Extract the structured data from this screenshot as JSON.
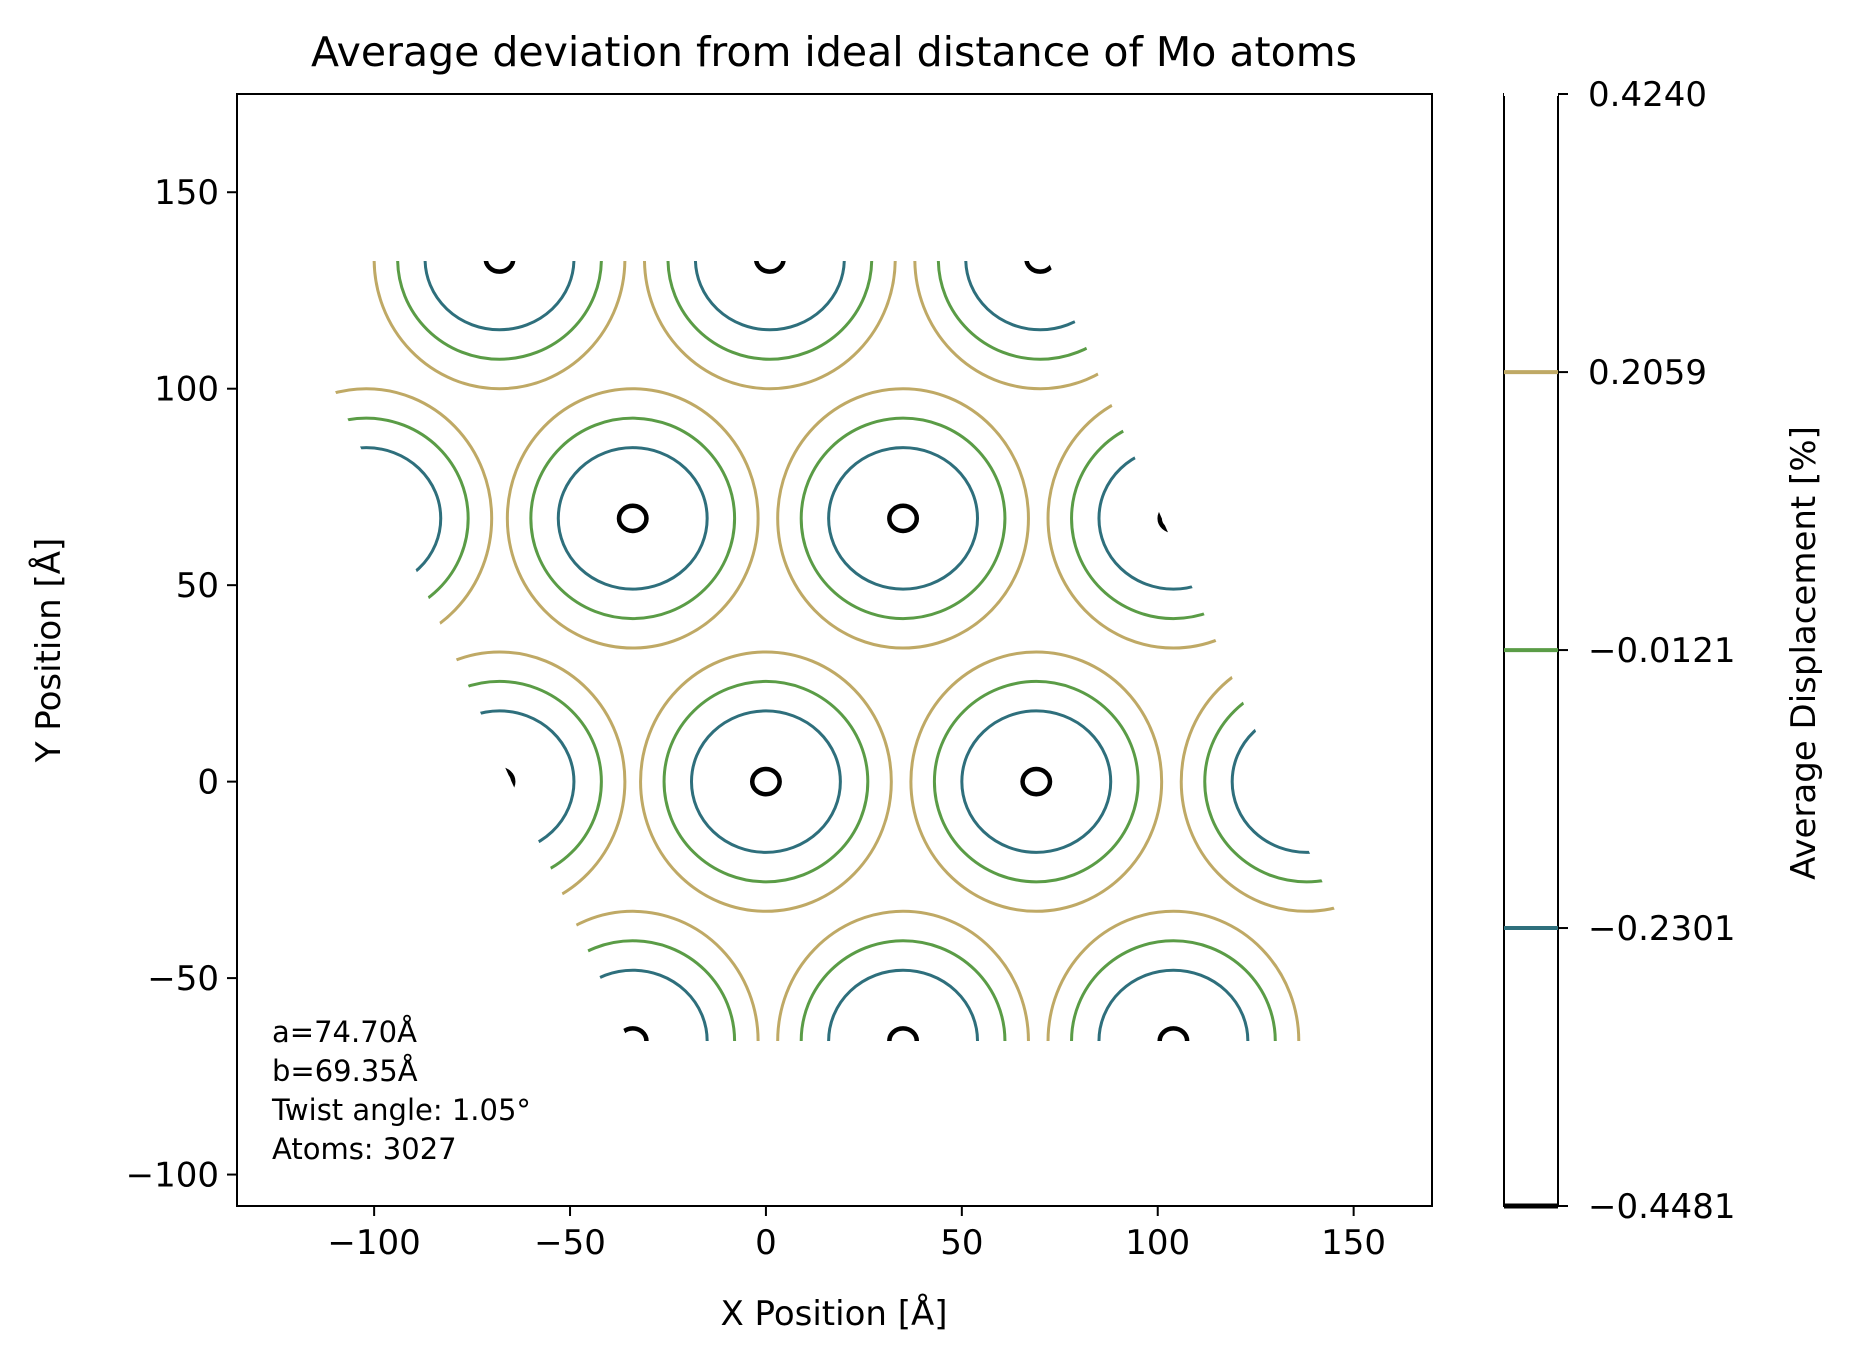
{
  "chart_data": {
    "type": "contour",
    "title": "Average deviation from ideal distance of Mo atoms",
    "xlabel": "X Position [Å]",
    "ylabel": "Y Position [Å]",
    "xlim": [
      -135,
      170
    ],
    "ylim": [
      -108,
      175
    ],
    "xticks": [
      -100,
      -50,
      0,
      50,
      100,
      150
    ],
    "xtick_labels": [
      "−100",
      "−50",
      "0",
      "50",
      "100",
      "150"
    ],
    "yticks": [
      -100,
      -50,
      0,
      50,
      100,
      150
    ],
    "ytick_labels": [
      "−100",
      "−50",
      "0",
      "50",
      "100",
      "150"
    ],
    "colorbar": {
      "label": "Average Displacement [%]",
      "range": [
        -0.4481,
        0.424
      ],
      "levels": [
        {
          "value": -0.4481,
          "label": "−0.4481",
          "color": "#000000"
        },
        {
          "value": -0.2301,
          "label": "−0.2301",
          "color": "#2e6f7c"
        },
        {
          "value": -0.0121,
          "label": "−0.0121",
          "color": "#5a9c46"
        },
        {
          "value": 0.2059,
          "label": "0.2059",
          "color": "#bfa965"
        },
        {
          "value": 0.424,
          "label": "0.4240",
          "color": "#ffffff"
        }
      ]
    },
    "cell": {
      "vertices": [
        [
          -125,
          132.5
        ],
        [
          -35,
          -66
        ],
        [
          160,
          -66
        ],
        [
          72,
          132.5
        ]
      ]
    },
    "centers": [
      [
        -102,
        67
      ],
      [
        -34,
        67
      ],
      [
        35,
        67
      ],
      [
        104,
        67
      ],
      [
        -68,
        0
      ],
      [
        0,
        0
      ],
      [
        69,
        0
      ],
      [
        138,
        0
      ],
      [
        -68,
        133
      ],
      [
        1,
        133
      ],
      [
        70,
        133
      ],
      [
        -34,
        -66
      ],
      [
        35,
        -66
      ],
      [
        104,
        -66
      ]
    ],
    "contour_radii": {
      "black": [
        3.5,
        3.2
      ],
      "teal": [
        19,
        18
      ],
      "green": [
        26,
        25.5
      ],
      "tan": [
        32,
        33
      ]
    },
    "annotations": [
      "a=74.70Å",
      "b=69.35Å",
      "Twist angle: 1.05°",
      "Atoms: 3027"
    ]
  }
}
